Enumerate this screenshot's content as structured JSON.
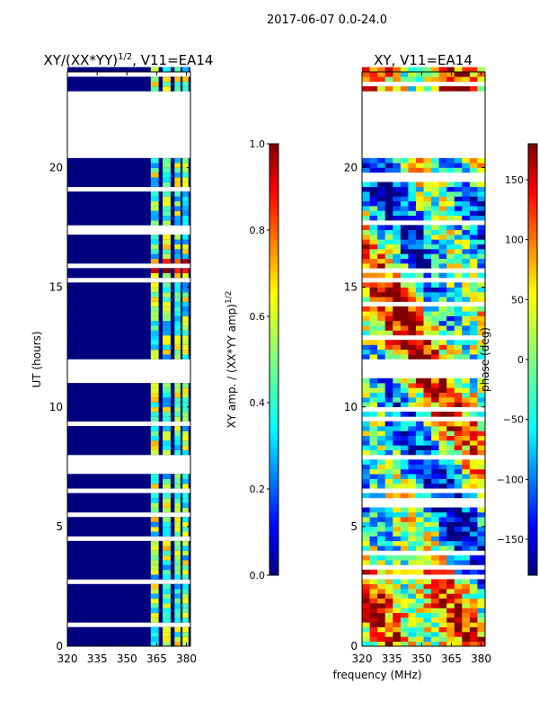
{
  "figure_title": "2017-06-07 0.0-24.0",
  "xlabel_shared": "frequency (MHz)",
  "chart_data": [
    {
      "type": "heatmap",
      "title_main": "XY/(XX*YY)",
      "title_exp": "1/2",
      "title_rest": ", V11=EA14",
      "xlabel": "frequency (MHz)",
      "ylabel": "UT (hours)",
      "xlim": [
        320,
        382
      ],
      "ylim": [
        0,
        24
      ],
      "xticks": [
        "320",
        "335",
        "350",
        "365",
        "380"
      ],
      "yticks": [
        "0",
        "5",
        "10",
        "15",
        "20"
      ],
      "colorbar": {
        "label_main": "XY amp. / (XX*YY amp)",
        "label_exp": "1/2",
        "range": [
          0,
          1
        ],
        "ticks": [
          "0.0",
          "0.2",
          "0.4",
          "0.6",
          "0.8",
          "1.0"
        ]
      },
      "data_gaps_hours": [
        [
          11.1,
          11.9
        ],
        [
          20.3,
          23.2
        ]
      ],
      "bright_channels_mhz": [
        [
          362,
          366
        ],
        [
          368,
          372
        ],
        [
          374,
          377
        ],
        [
          378,
          381
        ]
      ]
    },
    {
      "type": "heatmap",
      "title_main": "XY, V11=EA14",
      "xlabel": "frequency (MHz)",
      "ylabel": "",
      "xlim": [
        320,
        382
      ],
      "ylim": [
        0,
        24
      ],
      "xticks": [
        "320",
        "335",
        "350",
        "365",
        "380"
      ],
      "yticks": [
        "0",
        "5",
        "10",
        "15",
        "20"
      ],
      "colorbar": {
        "label_main": "phase (deg)",
        "range": [
          -180,
          180
        ],
        "ticks": [
          "−150",
          "−100",
          "−50",
          "0",
          "50",
          "100",
          "150"
        ]
      },
      "data_gaps_hours": [
        [
          11.1,
          11.9
        ],
        [
          20.3,
          23.2
        ]
      ]
    }
  ],
  "colors": {
    "jet": [
      "#00007f",
      "#0000ff",
      "#007fff",
      "#00ffff",
      "#7fff7f",
      "#ffff00",
      "#ff7f00",
      "#ff0000",
      "#7f0000"
    ]
  }
}
